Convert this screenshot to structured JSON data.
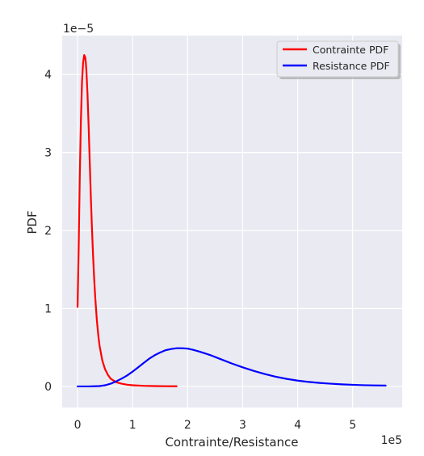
{
  "chart_data": {
    "type": "line",
    "title": "",
    "xlabel": "Contrainte/Resistance",
    "ylabel": "PDF",
    "x_scale_label": "1e5",
    "y_scale_label": "1e−5",
    "xlim": [
      -0.28,
      5.9
    ],
    "ylim": [
      -0.27,
      4.5
    ],
    "x_ticks": [
      0,
      1,
      2,
      3,
      4,
      5
    ],
    "x_tick_labels": [
      "0",
      "1",
      "2",
      "3",
      "4",
      "5"
    ],
    "y_ticks": [
      0,
      1,
      2,
      3,
      4
    ],
    "y_tick_labels": [
      "0",
      "1",
      "2",
      "3",
      "4"
    ],
    "grid": true,
    "legend_position": "top-right",
    "series": [
      {
        "name": "Contrainte PDF",
        "color": "#ff0000",
        "x": [
          0,
          0.02,
          0.04,
          0.06,
          0.08,
          0.1,
          0.12,
          0.14,
          0.15,
          0.16,
          0.18,
          0.2,
          0.22,
          0.24,
          0.26,
          0.28,
          0.3,
          0.32,
          0.35,
          0.38,
          0.4,
          0.45,
          0.5,
          0.55,
          0.6,
          0.7,
          0.8,
          0.9,
          1.0,
          1.2,
          1.4,
          1.6,
          1.8
        ],
        "y": [
          1.02,
          1.8,
          2.7,
          3.4,
          3.9,
          4.15,
          4.25,
          4.22,
          4.15,
          4.05,
          3.75,
          3.35,
          2.9,
          2.45,
          2.05,
          1.7,
          1.4,
          1.15,
          0.85,
          0.63,
          0.52,
          0.33,
          0.22,
          0.15,
          0.1,
          0.055,
          0.035,
          0.022,
          0.015,
          0.008,
          0.005,
          0.003,
          0.002
        ]
      },
      {
        "name": "Resistance PDF",
        "color": "#0000ff",
        "x": [
          0,
          0.2,
          0.4,
          0.5,
          0.6,
          0.7,
          0.8,
          0.9,
          1.0,
          1.1,
          1.2,
          1.3,
          1.4,
          1.5,
          1.6,
          1.7,
          1.8,
          1.9,
          2.0,
          2.1,
          2.2,
          2.4,
          2.6,
          2.8,
          3.0,
          3.2,
          3.4,
          3.6,
          3.8,
          4.0,
          4.2,
          4.4,
          4.6,
          4.8,
          5.0,
          5.2,
          5.4,
          5.6
        ],
        "y": [
          0,
          0,
          0.005,
          0.015,
          0.035,
          0.065,
          0.1,
          0.14,
          0.19,
          0.245,
          0.3,
          0.355,
          0.4,
          0.435,
          0.465,
          0.48,
          0.49,
          0.49,
          0.485,
          0.47,
          0.45,
          0.405,
          0.35,
          0.295,
          0.245,
          0.2,
          0.16,
          0.125,
          0.097,
          0.075,
          0.058,
          0.045,
          0.035,
          0.027,
          0.021,
          0.016,
          0.013,
          0.011
        ]
      }
    ]
  }
}
